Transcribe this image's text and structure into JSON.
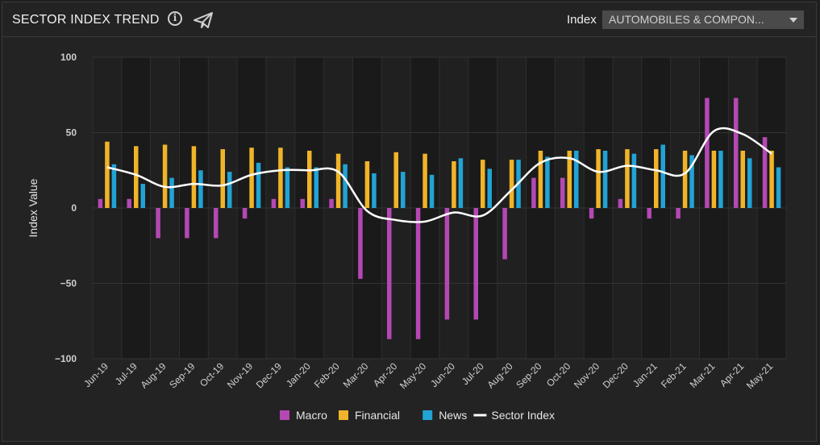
{
  "header": {
    "title": "SECTOR INDEX TREND",
    "index_label": "Index",
    "index_value": "AUTOMOBILES & COMPON...",
    "icons": [
      "info-icon",
      "send-icon",
      "chevron-down-icon"
    ]
  },
  "chart_data": {
    "type": "bar",
    "ylabel": "Index Value",
    "ylim": [
      -100,
      100
    ],
    "yticks": [
      100,
      50,
      0,
      -50,
      -100
    ],
    "categories": [
      "Jun-19",
      "Jul-19",
      "Aug-19",
      "Sep-19",
      "Oct-19",
      "Nov-19",
      "Dec-19",
      "Jan-20",
      "Feb-20",
      "Mar-20",
      "Apr-20",
      "May-20",
      "Jun-20",
      "Jul-20",
      "Aug-20",
      "Sep-20",
      "Oct-20",
      "Nov-20",
      "Dec-20",
      "Jan-21",
      "Feb-21",
      "Mar-21",
      "Apr-21",
      "May-21"
    ],
    "series": [
      {
        "name": "Macro",
        "kind": "bar",
        "color": "#b448b4",
        "values": [
          6,
          6,
          -20,
          -20,
          -20,
          -7,
          6,
          6,
          6,
          -47,
          -87,
          -87,
          -74,
          -74,
          -34,
          20,
          20,
          -7,
          6,
          -7,
          -7,
          73,
          73,
          47
        ]
      },
      {
        "name": "Financial",
        "kind": "bar",
        "color": "#f0b429",
        "values": [
          44,
          41,
          42,
          41,
          39,
          40,
          40,
          38,
          36,
          31,
          37,
          36,
          31,
          32,
          32,
          38,
          38,
          39,
          39,
          39,
          38,
          38,
          38,
          38
        ]
      },
      {
        "name": "News",
        "kind": "bar",
        "color": "#21a3d4",
        "values": [
          29,
          16,
          20,
          25,
          24,
          30,
          27,
          27,
          29,
          23,
          24,
          22,
          33,
          26,
          32,
          34,
          38,
          38,
          36,
          42,
          35,
          38,
          33,
          27
        ]
      },
      {
        "name": "Sector Index",
        "kind": "line",
        "color": "#ffffff",
        "values": [
          27,
          22,
          14,
          16,
          15,
          22,
          25,
          25,
          24,
          -2,
          -8,
          -9,
          -3,
          -5,
          12,
          30,
          33,
          24,
          28,
          25,
          23,
          51,
          49,
          36
        ]
      }
    ],
    "legend_position": "bottom",
    "grid": true
  }
}
